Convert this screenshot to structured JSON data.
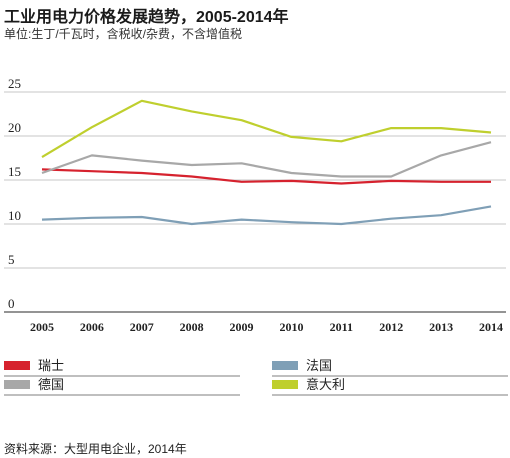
{
  "title": "工业用电力价格发展趋势，2005-2014年",
  "subtitle": "单位:生丁/千瓦时，含税收/杂费，不含增值税",
  "source": "资料来源：大型用电企业，2014年",
  "chart_data": {
    "type": "line",
    "x": [
      "2005",
      "2006",
      "2007",
      "2008",
      "2009",
      "2010",
      "2011",
      "2012",
      "2013",
      "2014"
    ],
    "yticks": [
      "0",
      "5",
      "10",
      "15",
      "20",
      "25"
    ],
    "ylim": [
      0,
      25
    ],
    "grid": true,
    "legend_position": "bottom",
    "series": [
      {
        "name": "瑞士",
        "color": "#d6222e",
        "values": [
          16.2,
          16.0,
          15.8,
          15.4,
          14.8,
          14.9,
          14.6,
          14.9,
          14.8,
          14.8
        ]
      },
      {
        "name": "法国",
        "color": "#7f9fb6",
        "values": [
          10.5,
          10.7,
          10.8,
          10.0,
          10.5,
          10.2,
          10.0,
          10.6,
          11.0,
          12.0
        ]
      },
      {
        "name": "德国",
        "color": "#a8a8a8",
        "values": [
          15.8,
          17.8,
          17.2,
          16.7,
          16.9,
          15.8,
          15.4,
          15.4,
          17.8,
          19.3
        ]
      },
      {
        "name": "意大利",
        "color": "#bfcf2e",
        "values": [
          17.6,
          21.0,
          24.0,
          22.8,
          21.8,
          19.9,
          19.4,
          20.9,
          20.9,
          20.4
        ]
      }
    ]
  }
}
